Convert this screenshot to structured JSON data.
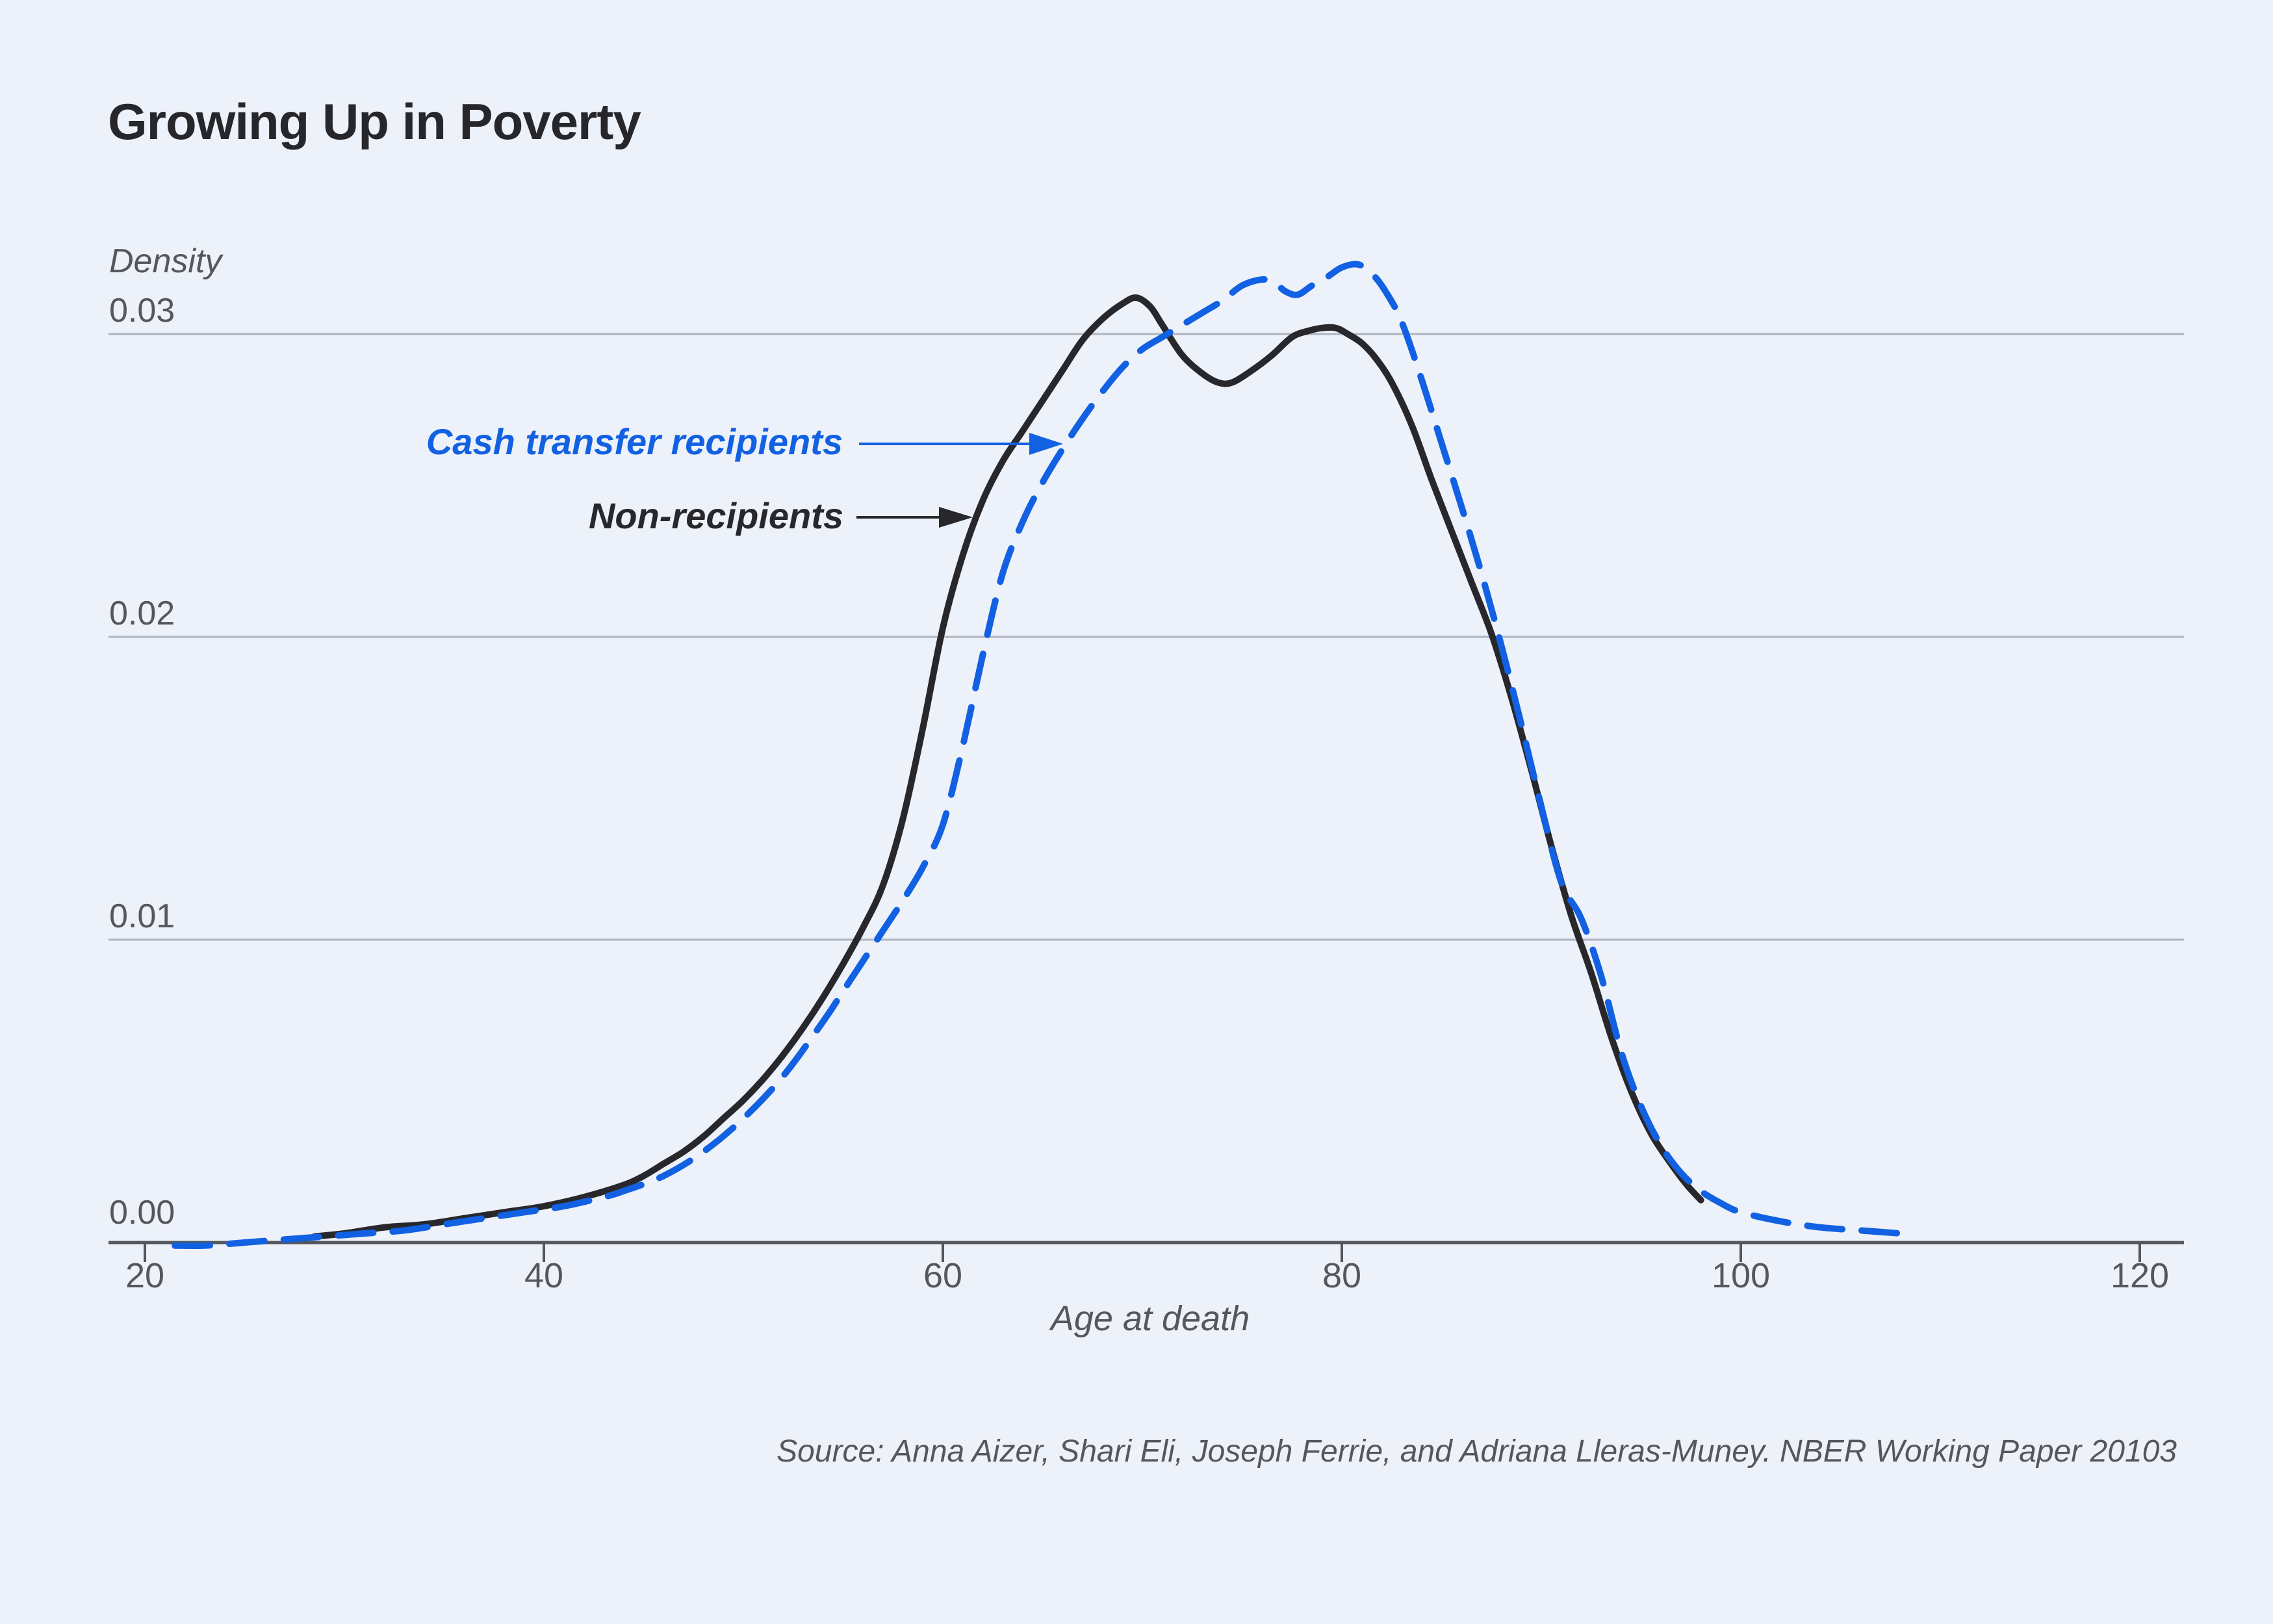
{
  "title": "Growing Up in Poverty",
  "source": "Source: Anna Aizer, Shari Eli, Joseph Ferrie, and Adriana Lleras-Muney. NBER Working Paper 20103",
  "colors": {
    "background": "#edf1f9",
    "accent_blue": "#1261e2",
    "curve_black": "#28282c",
    "gridline": "#b0b5bd",
    "axis": "#53565b",
    "text_dark": "#26262b",
    "text_muted": "#54575d"
  },
  "chart_data": {
    "type": "line",
    "title": "Growing Up in Poverty",
    "xlabel": "Age at death",
    "ylabel": "Density",
    "xlim": [
      20,
      122
    ],
    "ylim": [
      -0.0005,
      0.0345
    ],
    "grid": "horizontal",
    "legend_position": "inline annotations with arrows",
    "xticks": [
      {
        "label": "20",
        "value": 20
      },
      {
        "label": "40",
        "value": 40
      },
      {
        "label": "60",
        "value": 60
      },
      {
        "label": "80",
        "value": 80
      },
      {
        "label": "100",
        "value": 100
      },
      {
        "label": "120",
        "value": 120
      }
    ],
    "yticks": [
      {
        "label": "0.03",
        "value": 0.03
      },
      {
        "label": "0.02",
        "value": 0.02
      },
      {
        "label": "0.01",
        "value": 0.01
      },
      {
        "label": "0.00",
        "value": 0.0
      }
    ],
    "series": [
      {
        "name": "Cash transfer recipients",
        "style": "dashed",
        "color": "#1261e2",
        "points": [
          [
            21.5,
            -0.0001
          ],
          [
            23,
            -0.0001
          ],
          [
            25,
            0.0
          ],
          [
            27,
            0.0001
          ],
          [
            29,
            0.0002
          ],
          [
            31,
            0.0003
          ],
          [
            33,
            0.0004
          ],
          [
            35,
            0.0006
          ],
          [
            37,
            0.0008
          ],
          [
            39,
            0.001
          ],
          [
            41,
            0.0012
          ],
          [
            43,
            0.0015
          ],
          [
            44,
            0.0017
          ],
          [
            46,
            0.0022
          ],
          [
            48,
            0.003
          ],
          [
            50,
            0.0041
          ],
          [
            52,
            0.0055
          ],
          [
            54,
            0.0073
          ],
          [
            55,
            0.0083
          ],
          [
            56,
            0.0093
          ],
          [
            57,
            0.0103
          ],
          [
            58,
            0.0113
          ],
          [
            59,
            0.0124
          ],
          [
            60,
            0.0138
          ],
          [
            61,
            0.0164
          ],
          [
            62,
            0.0194
          ],
          [
            63,
            0.0221
          ],
          [
            64,
            0.0238
          ],
          [
            65,
            0.0251
          ],
          [
            66,
            0.0262
          ],
          [
            67,
            0.0272
          ],
          [
            68,
            0.0281
          ],
          [
            69,
            0.0289
          ],
          [
            70,
            0.0295
          ],
          [
            71,
            0.0299
          ],
          [
            72,
            0.0303
          ],
          [
            73,
            0.0307
          ],
          [
            74,
            0.0311
          ],
          [
            75,
            0.0316
          ],
          [
            76,
            0.0318
          ],
          [
            76.6,
            0.0317
          ],
          [
            77.2,
            0.0314
          ],
          [
            77.8,
            0.0313
          ],
          [
            78.5,
            0.0316
          ],
          [
            79.3,
            0.0319
          ],
          [
            80,
            0.0322
          ],
          [
            80.8,
            0.0323
          ],
          [
            81.5,
            0.032
          ],
          [
            82.2,
            0.0314
          ],
          [
            83,
            0.0304
          ],
          [
            84,
            0.0285
          ],
          [
            85,
            0.0264
          ],
          [
            86,
            0.0243
          ],
          [
            87,
            0.0221
          ],
          [
            88,
            0.0197
          ],
          [
            89,
            0.0171
          ],
          [
            90,
            0.0144
          ],
          [
            91,
            0.0119
          ],
          [
            92,
            0.0107
          ],
          [
            93,
            0.0088
          ],
          [
            94,
            0.0063
          ],
          [
            95,
            0.0045
          ],
          [
            96,
            0.0032
          ],
          [
            97,
            0.0023
          ],
          [
            98,
            0.0017
          ],
          [
            99,
            0.0013
          ],
          [
            100,
            0.001
          ],
          [
            102,
            0.0007
          ],
          [
            104,
            0.0005
          ],
          [
            106,
            0.0004
          ],
          [
            108,
            0.0003
          ]
        ]
      },
      {
        "name": "Non-recipients",
        "style": "solid",
        "color": "#28282c",
        "points": [
          [
            28.5,
            0.0002
          ],
          [
            30,
            0.0003
          ],
          [
            32,
            0.0005
          ],
          [
            34,
            0.0006
          ],
          [
            36,
            0.0008
          ],
          [
            38,
            0.001
          ],
          [
            40,
            0.0012
          ],
          [
            42,
            0.0015
          ],
          [
            44,
            0.0019
          ],
          [
            45,
            0.0022
          ],
          [
            46,
            0.0026
          ],
          [
            47,
            0.003
          ],
          [
            48,
            0.0035
          ],
          [
            49,
            0.0041
          ],
          [
            50,
            0.0047
          ],
          [
            51,
            0.0054
          ],
          [
            52,
            0.0062
          ],
          [
            53,
            0.0071
          ],
          [
            54,
            0.0081
          ],
          [
            55,
            0.0092
          ],
          [
            56,
            0.0104
          ],
          [
            57,
            0.0118
          ],
          [
            58,
            0.014
          ],
          [
            59,
            0.017
          ],
          [
            60,
            0.0203
          ],
          [
            61,
            0.0227
          ],
          [
            62,
            0.0245
          ],
          [
            63,
            0.0258
          ],
          [
            64,
            0.0268
          ],
          [
            65,
            0.0278
          ],
          [
            66,
            0.0288
          ],
          [
            67,
            0.0298
          ],
          [
            68,
            0.0305
          ],
          [
            69,
            0.031
          ],
          [
            69.7,
            0.0312
          ],
          [
            70.4,
            0.0309
          ],
          [
            71,
            0.0303
          ],
          [
            72,
            0.0293
          ],
          [
            73,
            0.0287
          ],
          [
            73.8,
            0.0284
          ],
          [
            74.5,
            0.0284
          ],
          [
            75.5,
            0.0288
          ],
          [
            76.5,
            0.0293
          ],
          [
            77.5,
            0.0299
          ],
          [
            78.3,
            0.0301
          ],
          [
            79,
            0.0302
          ],
          [
            79.7,
            0.0302
          ],
          [
            80.3,
            0.03
          ],
          [
            81,
            0.0297
          ],
          [
            81.7,
            0.0292
          ],
          [
            82.5,
            0.0284
          ],
          [
            83.5,
            0.027
          ],
          [
            84.5,
            0.0252
          ],
          [
            85.5,
            0.0235
          ],
          [
            86.5,
            0.0218
          ],
          [
            87.5,
            0.0201
          ],
          [
            88.5,
            0.018
          ],
          [
            89.5,
            0.0156
          ],
          [
            90.5,
            0.0131
          ],
          [
            91.5,
            0.0108
          ],
          [
            92.5,
            0.0089
          ],
          [
            93.5,
            0.0068
          ],
          [
            94.5,
            0.005
          ],
          [
            95.5,
            0.0036
          ],
          [
            96.5,
            0.0026
          ],
          [
            97.3,
            0.0019
          ],
          [
            98,
            0.0014
          ]
        ]
      }
    ],
    "annotations": [
      {
        "text": "Cash transfer recipients",
        "color": "#1261e2",
        "points_to": "dashed curve"
      },
      {
        "text": "Non-recipients",
        "color": "#28282c",
        "points_to": "solid curve"
      }
    ]
  }
}
